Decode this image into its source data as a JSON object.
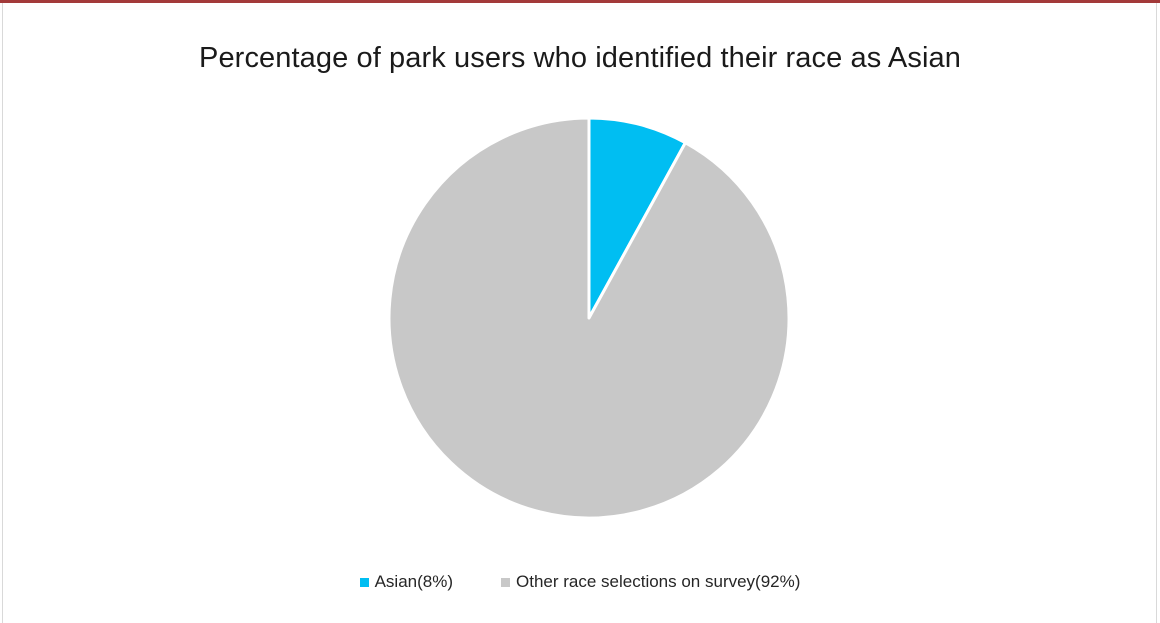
{
  "chart_data": {
    "type": "pie",
    "title": "Percentage of park users who identified their race as Asian",
    "slices": [
      {
        "label": "Asian(8%)",
        "value": 8,
        "color": "#00bef2"
      },
      {
        "label": "Other race selections on survey(92%)",
        "value": 92,
        "color": "#c8c8c8"
      }
    ],
    "legend_position": "bottom"
  },
  "colors": {
    "frame_accent": "#a33a3a"
  }
}
